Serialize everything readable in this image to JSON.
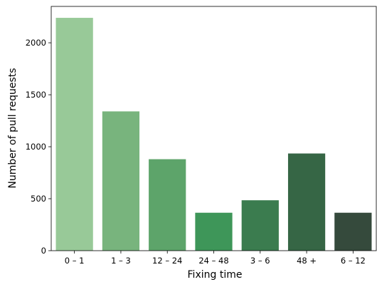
{
  "chart_data": {
    "type": "bar",
    "title": "",
    "xlabel": "Fixing time",
    "ylabel": "Number of pull requests",
    "categories": [
      "0 – 1",
      "1 – 3",
      "12 – 24",
      "24 – 48",
      "3 – 6",
      "48 +",
      "6 – 12"
    ],
    "values": [
      2240,
      1340,
      880,
      365,
      485,
      935,
      365
    ],
    "ylim": [
      0,
      2350
    ],
    "yticks": [
      0,
      500,
      1000,
      1500,
      2000
    ],
    "ytick_labels": [
      "0",
      "500",
      "1000",
      "1500",
      "2000"
    ],
    "grid": false,
    "legend": "none",
    "colors": [
      "#98c998",
      "#78b47d",
      "#5da46a",
      "#3e9659",
      "#3b7c4f",
      "#366645",
      "#354a3c"
    ]
  }
}
